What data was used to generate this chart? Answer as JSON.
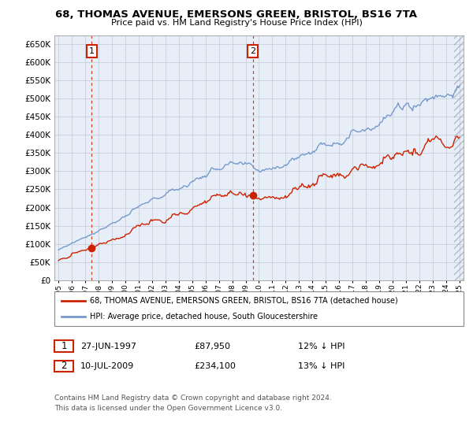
{
  "title_line1": "68, THOMAS AVENUE, EMERSONS GREEN, BRISTOL, BS16 7TA",
  "title_line2": "Price paid vs. HM Land Registry's House Price Index (HPI)",
  "legend_red": "68, THOMAS AVENUE, EMERSONS GREEN, BRISTOL, BS16 7TA (detached house)",
  "legend_blue": "HPI: Average price, detached house, South Gloucestershire",
  "purchase1_date": 1997.49,
  "purchase1_label": "27-JUN-1997",
  "purchase1_price": 87950,
  "purchase1_pct": "12% ↓ HPI",
  "purchase2_date": 2009.53,
  "purchase2_label": "10-JUL-2009",
  "purchase2_price": 234100,
  "purchase2_pct": "13% ↓ HPI",
  "yticks": [
    0,
    50000,
    100000,
    150000,
    200000,
    250000,
    300000,
    350000,
    400000,
    450000,
    500000,
    550000,
    600000,
    650000
  ],
  "ymax": 675000,
  "xmin": 1994.7,
  "xmax": 2025.3,
  "hpi_color": "#7799cc",
  "paid_color": "#cc2200",
  "bg_color": "#e8eef8",
  "grid_color": "#c8d0dc",
  "footer": "Contains HM Land Registry data © Crown copyright and database right 2024.\nThis data is licensed under the Open Government Licence v3.0."
}
